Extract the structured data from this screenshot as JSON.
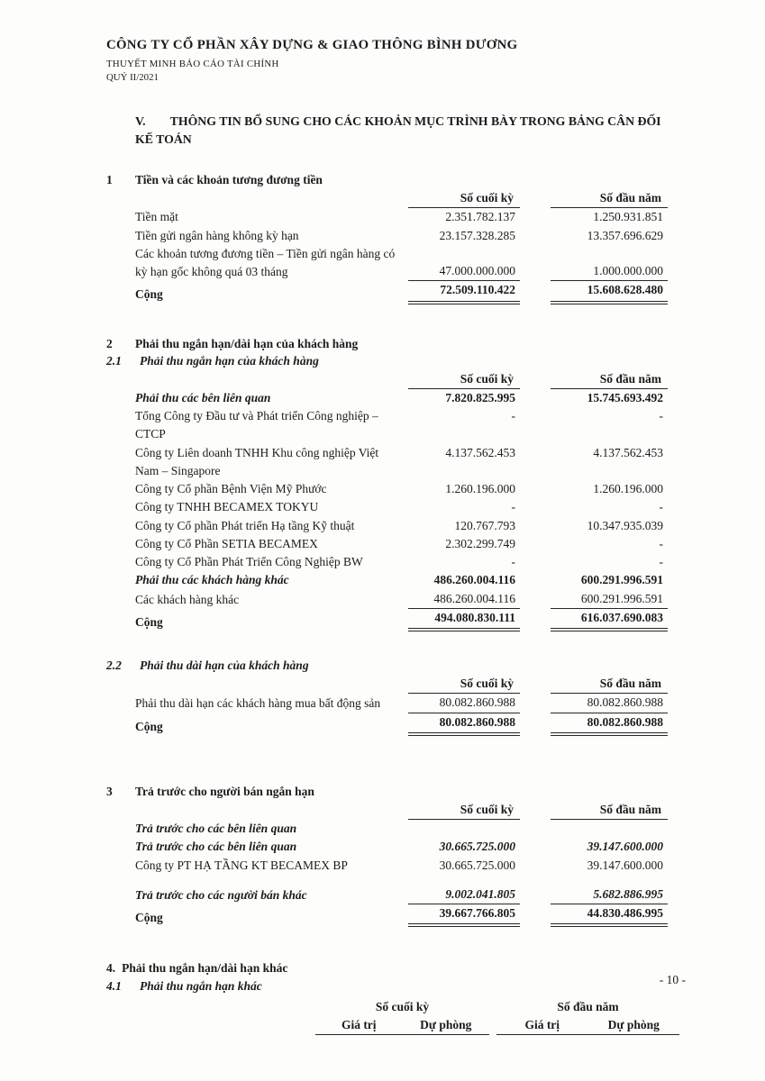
{
  "header": {
    "company": "CÔNG TY CỔ PHẦN XÂY DỰNG & GIAO THÔNG BÌNH DƯƠNG",
    "report_title": "THUYẾT MINH BÁO CÁO TÀI CHÍNH",
    "period": "QUÝ II/2021"
  },
  "section_v": {
    "number": "V.",
    "title": "THÔNG TIN BỔ SUNG CHO CÁC KHOẢN MỤC TRÌNH BÀY TRONG BẢNG CÂN ĐỐI\nKẾ TOÁN"
  },
  "columns": {
    "ending": "Số cuối kỳ",
    "beginning": "Số đầu năm",
    "value": "Giá trị",
    "provision": "Dự phòng"
  },
  "sections": {
    "cash": {
      "number": "1",
      "title": "Tiền và các khoản tương đương tiền",
      "rows": [
        {
          "label": "Tiền mặt",
          "ending": "2.351.782.137",
          "beginning": "1.250.931.851"
        },
        {
          "label": "Tiền gửi ngân hàng không kỳ hạn",
          "ending": "23.157.328.285",
          "beginning": "13.357.696.629"
        },
        {
          "label": "Các khoản tương đương tiền – Tiền gửi ngân hàng có kỳ hạn gốc không quá 03 tháng",
          "ending": "47.000.000.000",
          "beginning": "1.000.000.000"
        },
        {
          "label": "Cộng",
          "ending": "72.509.110.422",
          "beginning": "15.608.628.480"
        }
      ]
    },
    "receivables": {
      "number": "2",
      "title": "Phải thu ngắn hạn/dài hạn của khách hàng"
    },
    "receivables_short": {
      "number": "2.1",
      "title": "Phải thu ngắn hạn của khách hàng",
      "rows": [
        {
          "label": "Phải thu các bên liên quan",
          "ending": "7.820.825.995",
          "beginning": "15.745.693.492"
        },
        {
          "label": "Tổng Công ty Đầu tư và Phát triển Công nghiệp – CTCP",
          "ending": "-",
          "beginning": "-"
        },
        {
          "label": "Công ty Liên doanh TNHH Khu công nghiệp Việt Nam – Singapore",
          "ending": "4.137.562.453",
          "beginning": "4.137.562.453"
        },
        {
          "label": "Công ty Cổ phần Bệnh Viện Mỹ Phước",
          "ending": "1.260.196.000",
          "beginning": "1.260.196.000"
        },
        {
          "label": "Công ty TNHH BECAMEX TOKYU",
          "ending": "-",
          "beginning": "-"
        },
        {
          "label": "Công ty Cổ phần Phát triển Hạ tầng Kỹ thuật",
          "ending": "120.767.793",
          "beginning": "10.347.935.039"
        },
        {
          "label": "Công ty Cổ Phần SETIA BECAMEX",
          "ending": "2.302.299.749",
          "beginning": "-"
        },
        {
          "label": "Công ty Cổ Phần Phát Triển Công Nghiệp BW",
          "ending": "-",
          "beginning": "-"
        },
        {
          "label": "Phải thu các khách hàng khác",
          "ending": "486.260.004.116",
          "beginning": "600.291.996.591"
        },
        {
          "label": "Các khách hàng khác",
          "ending": "486.260.004.116",
          "beginning": "600.291.996.591"
        },
        {
          "label": "Cộng",
          "ending": "494.080.830.111",
          "beginning": "616.037.690.083"
        }
      ]
    },
    "receivables_long": {
      "number": "2.2",
      "title": "Phải thu dài hạn của khách hàng",
      "rows": [
        {
          "label": "Phải thu dài hạn các khách hàng mua bất động sản",
          "ending": "80.082.860.988",
          "beginning": "80.082.860.988"
        },
        {
          "label": "Cộng",
          "ending": "80.082.860.988",
          "beginning": "80.082.860.988"
        }
      ]
    },
    "prepayments": {
      "number": "3",
      "title": "Trả trước cho người bán ngắn hạn",
      "rows": [
        {
          "label": "Trả trước cho các bên liên quan",
          "ending": "",
          "beginning": ""
        },
        {
          "label": "Trả trước cho các bên liên quan",
          "ending": "30.665.725.000",
          "beginning": "39.147.600.000"
        },
        {
          "label": "Công ty PT HẠ TẦNG KT BECAMEX BP",
          "ending": "30.665.725.000",
          "beginning": "39.147.600.000"
        },
        {
          "label": "Trả trước cho các người bán khác",
          "ending": "9.002.041.805",
          "beginning": "5.682.886.995"
        },
        {
          "label": "Cộng",
          "ending": "39.667.766.805",
          "beginning": "44.830.486.995"
        }
      ]
    },
    "other_receivables": {
      "number": "4.",
      "title": "Phải thu ngắn hạn/dài hạn khác"
    },
    "other_receivables_short": {
      "number": "4.1",
      "title": "Phải thu ngắn hạn khác"
    }
  },
  "page_number": "- 10 -"
}
